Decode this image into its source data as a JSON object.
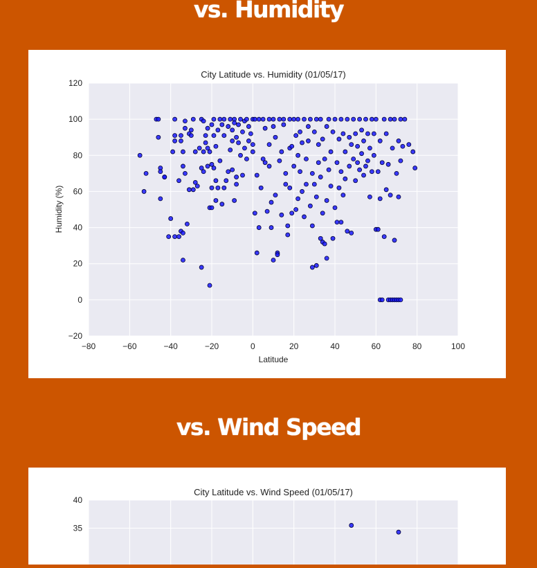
{
  "sections": [
    {
      "heading": "vs. Humidity",
      "chart_data": {
        "type": "scatter",
        "title": "City Latitude vs. Humidity (01/05/17)",
        "xlabel": "Latitude",
        "ylabel": "Humidity (%)",
        "xlim": [
          -80,
          100
        ],
        "ylim": [
          -20,
          120
        ],
        "xticks": [
          -80,
          -60,
          -40,
          -20,
          0,
          20,
          40,
          60,
          80,
          100
        ],
        "yticks": [
          -20,
          0,
          20,
          40,
          60,
          80,
          100,
          120
        ],
        "grid": true,
        "colors": {
          "point": "#1a1aff",
          "edge": "#000033",
          "plot_bg": "#eaeaf2",
          "grid": "#ffffff"
        },
        "points": [
          [
            -55,
            80
          ],
          [
            -53,
            60
          ],
          [
            -52,
            70
          ],
          [
            -47,
            100
          ],
          [
            -46,
            100
          ],
          [
            -46,
            90
          ],
          [
            -45,
            73
          ],
          [
            -45,
            71
          ],
          [
            -45,
            56
          ],
          [
            -43,
            68
          ],
          [
            -43,
            68
          ],
          [
            -41,
            35
          ],
          [
            -40,
            45
          ],
          [
            -39,
            82
          ],
          [
            -38,
            88
          ],
          [
            -38,
            91
          ],
          [
            -38,
            100
          ],
          [
            -38,
            35
          ],
          [
            -36,
            35
          ],
          [
            -36,
            66
          ],
          [
            -35,
            38
          ],
          [
            -35,
            91
          ],
          [
            -35,
            88
          ],
          [
            -34,
            22
          ],
          [
            -34,
            37
          ],
          [
            -34,
            74
          ],
          [
            -34,
            82
          ],
          [
            -33,
            95
          ],
          [
            -33,
            99
          ],
          [
            -33,
            70
          ],
          [
            -32,
            42
          ],
          [
            -31,
            92
          ],
          [
            -31,
            61
          ],
          [
            -30,
            91
          ],
          [
            -30,
            94
          ],
          [
            -29,
            100
          ],
          [
            -29,
            61
          ],
          [
            -28,
            65
          ],
          [
            -28,
            82
          ],
          [
            -27,
            63
          ],
          [
            -26,
            84
          ],
          [
            -25,
            18
          ],
          [
            -25,
            73
          ],
          [
            -25,
            100
          ],
          [
            -24,
            99
          ],
          [
            -24,
            82
          ],
          [
            -24,
            71
          ],
          [
            -23,
            91
          ],
          [
            -23,
            87
          ],
          [
            -22,
            74
          ],
          [
            -22,
            95
          ],
          [
            -22,
            84
          ],
          [
            -21,
            51
          ],
          [
            -21,
            82
          ],
          [
            -21,
            8
          ],
          [
            -20,
            51
          ],
          [
            -20,
            97
          ],
          [
            -20,
            75
          ],
          [
            -20,
            62
          ],
          [
            -19,
            91
          ],
          [
            -19,
            100
          ],
          [
            -19,
            73
          ],
          [
            -18,
            55
          ],
          [
            -18,
            85
          ],
          [
            -18,
            66
          ],
          [
            -17,
            62
          ],
          [
            -17,
            94
          ],
          [
            -16,
            100
          ],
          [
            -16,
            77
          ],
          [
            -15,
            97
          ],
          [
            -15,
            53
          ],
          [
            -14,
            100
          ],
          [
            -14,
            91
          ],
          [
            -14,
            62
          ],
          [
            -13,
            66
          ],
          [
            -12,
            96
          ],
          [
            -12,
            71
          ],
          [
            -11,
            100
          ],
          [
            -11,
            83
          ],
          [
            -10,
            94
          ],
          [
            -10,
            88
          ],
          [
            -10,
            72
          ],
          [
            -9,
            100
          ],
          [
            -9,
            98
          ],
          [
            -9,
            55
          ],
          [
            -8,
            90
          ],
          [
            -8,
            64
          ],
          [
            -8,
            68
          ],
          [
            -7,
            97
          ],
          [
            -7,
            87
          ],
          [
            -6,
            80
          ],
          [
            -6,
            100
          ],
          [
            -5,
            93
          ],
          [
            -5,
            69
          ],
          [
            -4,
            84
          ],
          [
            -4,
            99
          ],
          [
            -3,
            100
          ],
          [
            -3,
            78
          ],
          [
            -2,
            96
          ],
          [
            -2,
            88
          ],
          [
            -1,
            92
          ],
          [
            0,
            100
          ],
          [
            0,
            82
          ],
          [
            0,
            86
          ],
          [
            1,
            48
          ],
          [
            1,
            100
          ],
          [
            2,
            69
          ],
          [
            2,
            26
          ],
          [
            3,
            100
          ],
          [
            3,
            40
          ],
          [
            4,
            62
          ],
          [
            5,
            100
          ],
          [
            5,
            78
          ],
          [
            6,
            95
          ],
          [
            6,
            76
          ],
          [
            7,
            49
          ],
          [
            8,
            100
          ],
          [
            8,
            74
          ],
          [
            8,
            86
          ],
          [
            9,
            40
          ],
          [
            9,
            54
          ],
          [
            10,
            22
          ],
          [
            10,
            100
          ],
          [
            10,
            96
          ],
          [
            11,
            90
          ],
          [
            11,
            58
          ],
          [
            12,
            26
          ],
          [
            12,
            25
          ],
          [
            13,
            100
          ],
          [
            13,
            77
          ],
          [
            14,
            82
          ],
          [
            14,
            47
          ],
          [
            15,
            100
          ],
          [
            15,
            97
          ],
          [
            16,
            64
          ],
          [
            16,
            70
          ],
          [
            17,
            36
          ],
          [
            17,
            41
          ],
          [
            18,
            100
          ],
          [
            18,
            84
          ],
          [
            18,
            62
          ],
          [
            19,
            85
          ],
          [
            19,
            48
          ],
          [
            20,
            100
          ],
          [
            20,
            74
          ],
          [
            21,
            91
          ],
          [
            21,
            50
          ],
          [
            22,
            100
          ],
          [
            22,
            80
          ],
          [
            22,
            56
          ],
          [
            23,
            93
          ],
          [
            23,
            71
          ],
          [
            24,
            87
          ],
          [
            24,
            60
          ],
          [
            25,
            100
          ],
          [
            25,
            46
          ],
          [
            26,
            78
          ],
          [
            26,
            64
          ],
          [
            27,
            96
          ],
          [
            27,
            88
          ],
          [
            28,
            52
          ],
          [
            28,
            100
          ],
          [
            29,
            18
          ],
          [
            29,
            70
          ],
          [
            29,
            41
          ],
          [
            30,
            93
          ],
          [
            30,
            64
          ],
          [
            31,
            100
          ],
          [
            31,
            57
          ],
          [
            31,
            19
          ],
          [
            32,
            86
          ],
          [
            32,
            76
          ],
          [
            33,
            34
          ],
          [
            33,
            100
          ],
          [
            33,
            68
          ],
          [
            34,
            32
          ],
          [
            34,
            48
          ],
          [
            34,
            89
          ],
          [
            35,
            31
          ],
          [
            35,
            78
          ],
          [
            36,
            23
          ],
          [
            36,
            55
          ],
          [
            36,
            96
          ],
          [
            37,
            100
          ],
          [
            37,
            72
          ],
          [
            38,
            82
          ],
          [
            38,
            63
          ],
          [
            39,
            93
          ],
          [
            39,
            34
          ],
          [
            40,
            100
          ],
          [
            40,
            51
          ],
          [
            41,
            76
          ],
          [
            41,
            43
          ],
          [
            42,
            89
          ],
          [
            42,
            62
          ],
          [
            43,
            100
          ],
          [
            43,
            71
          ],
          [
            43,
            43
          ],
          [
            44,
            92
          ],
          [
            44,
            58
          ],
          [
            45,
            82
          ],
          [
            45,
            67
          ],
          [
            46,
            100
          ],
          [
            46,
            38
          ],
          [
            47,
            74
          ],
          [
            47,
            90
          ],
          [
            48,
            37
          ],
          [
            48,
            86
          ],
          [
            49,
            100
          ],
          [
            49,
            78
          ],
          [
            50,
            92
          ],
          [
            50,
            66
          ],
          [
            51,
            85
          ],
          [
            51,
            76
          ],
          [
            52,
            100
          ],
          [
            52,
            72
          ],
          [
            53,
            94
          ],
          [
            53,
            81
          ],
          [
            54,
            88
          ],
          [
            54,
            69
          ],
          [
            55,
            100
          ],
          [
            55,
            74
          ],
          [
            56,
            77
          ],
          [
            56,
            92
          ],
          [
            57,
            57
          ],
          [
            57,
            84
          ],
          [
            58,
            100
          ],
          [
            58,
            71
          ],
          [
            59,
            92
          ],
          [
            59,
            80
          ],
          [
            60,
            39
          ],
          [
            60,
            100
          ],
          [
            61,
            39
          ],
          [
            61,
            71
          ],
          [
            62,
            56
          ],
          [
            62,
            88
          ],
          [
            62,
            0
          ],
          [
            63,
            0
          ],
          [
            63,
            76
          ],
          [
            64,
            100
          ],
          [
            64,
            35
          ],
          [
            65,
            92
          ],
          [
            65,
            61
          ],
          [
            66,
            0
          ],
          [
            66,
            75
          ],
          [
            67,
            0
          ],
          [
            67,
            58
          ],
          [
            67,
            100
          ],
          [
            68,
            0
          ],
          [
            68,
            84
          ],
          [
            69,
            0
          ],
          [
            69,
            33
          ],
          [
            69,
            100
          ],
          [
            70,
            0
          ],
          [
            70,
            70
          ],
          [
            71,
            0
          ],
          [
            71,
            57
          ],
          [
            71,
            88
          ],
          [
            72,
            0
          ],
          [
            72,
            100
          ],
          [
            72,
            77
          ],
          [
            73,
            85
          ],
          [
            74,
            100
          ],
          [
            76,
            86
          ],
          [
            78,
            82
          ],
          [
            79,
            73
          ]
        ]
      }
    },
    {
      "heading": "vs. Wind Speed",
      "chart_data": {
        "type": "scatter",
        "title": "City Latitude vs. Wind Speed (01/05/17)",
        "xlim": [
          -80,
          100
        ],
        "ylim_visible": [
          30,
          40
        ],
        "yticks": [
          40,
          35
        ],
        "grid": true,
        "colors": {
          "point": "#1a1aff",
          "edge": "#000033",
          "plot_bg": "#eaeaf2",
          "grid": "#ffffff"
        },
        "points": [
          [
            48,
            35.5
          ],
          [
            71,
            34.3
          ]
        ]
      }
    }
  ]
}
